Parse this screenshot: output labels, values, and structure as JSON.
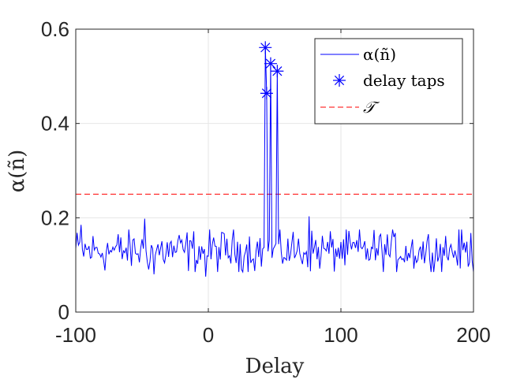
{
  "chart_data": {
    "type": "line",
    "xlabel": "Delay",
    "ylabel": "α(ñ)",
    "xlim": [
      -100,
      200
    ],
    "ylim": [
      0,
      0.6
    ],
    "xticks": [
      -100,
      0,
      100,
      200
    ],
    "xtick_labels": [
      "-100",
      "0",
      "100",
      "200"
    ],
    "yticks": [
      0,
      0.2,
      0.4,
      0.6
    ],
    "ytick_labels": [
      "0",
      "0.2",
      "0.4",
      "0.6"
    ],
    "grid": true,
    "legend_position": "top-right",
    "colors": {
      "signal": "#0000ff",
      "threshold": "#ff0000",
      "axes": "#262626",
      "grid": "#e6e6e6"
    },
    "series": [
      {
        "name": "α(ñ)",
        "kind": "line",
        "noise_baseline": {
          "x_start": -100,
          "x_end": 200,
          "step": 1,
          "mean": 0.13,
          "range": [
            0.075,
            0.2
          ]
        },
        "highlights": [
          {
            "x": -96,
            "y": 0.185
          },
          {
            "x": -48,
            "y": 0.198
          },
          {
            "x": -41,
            "y": 0.08
          },
          {
            "x": -2,
            "y": 0.075
          },
          {
            "x": 76,
            "y": 0.203
          }
        ]
      },
      {
        "name": "delay taps",
        "kind": "markers",
        "marker": "asterisk",
        "x": [
          43,
          44,
          47,
          52
        ],
        "y": [
          0.561,
          0.464,
          0.527,
          0.511
        ]
      },
      {
        "name": "𝒯",
        "kind": "hline",
        "style": "dashed",
        "y": 0.25
      }
    ]
  }
}
